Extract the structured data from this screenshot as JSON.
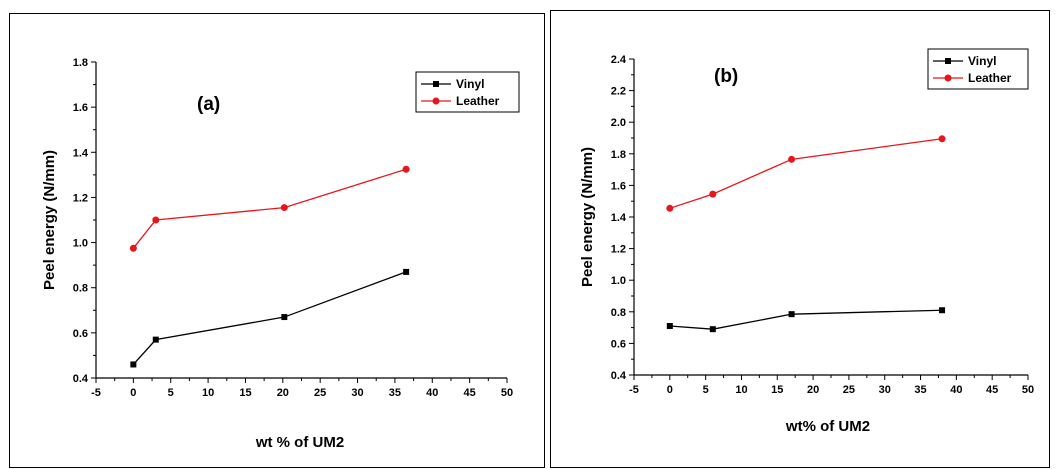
{
  "chart_data": [
    {
      "type": "line",
      "panel_label": "(a)",
      "xlabel": "wt %  of UM2",
      "ylabel": "Peel energy (N/mm)",
      "xlim": [
        -5,
        50
      ],
      "ylim": [
        0.4,
        1.8
      ],
      "xticks": [
        -5,
        0,
        5,
        10,
        15,
        20,
        25,
        30,
        35,
        40,
        45,
        50
      ],
      "yticks": [
        0.4,
        0.6,
        0.8,
        1.0,
        1.2,
        1.4,
        1.6,
        1.8
      ],
      "legend_position": "top-right",
      "series": [
        {
          "name": "Vinyl",
          "marker": "square",
          "color": "#000000",
          "x": [
            0,
            3,
            20.2,
            36.5
          ],
          "y": [
            0.46,
            0.57,
            0.67,
            0.87
          ]
        },
        {
          "name": "Leather",
          "marker": "circle",
          "color": "#e8161b",
          "x": [
            0,
            3,
            20.2,
            36.5
          ],
          "y": [
            0.975,
            1.1,
            1.155,
            1.325
          ]
        }
      ]
    },
    {
      "type": "line",
      "panel_label": "(b)",
      "xlabel": "wt% of UM2",
      "ylabel": "Peel energy (N/mm)",
      "xlim": [
        -5,
        50
      ],
      "ylim": [
        0.4,
        2.4
      ],
      "xticks": [
        -5,
        0,
        5,
        10,
        15,
        20,
        25,
        30,
        35,
        40,
        45,
        50
      ],
      "yticks": [
        0.4,
        0.6,
        0.8,
        1.0,
        1.2,
        1.4,
        1.6,
        1.8,
        2.0,
        2.2,
        2.4
      ],
      "legend_position": "top-right",
      "series": [
        {
          "name": "Vinyl",
          "marker": "square",
          "color": "#000000",
          "x": [
            0,
            6,
            17,
            38
          ],
          "y": [
            0.71,
            0.69,
            0.785,
            0.81
          ]
        },
        {
          "name": "Leather",
          "marker": "circle",
          "color": "#e8161b",
          "x": [
            0,
            6,
            17,
            38
          ],
          "y": [
            1.455,
            1.545,
            1.765,
            1.895
          ]
        }
      ]
    }
  ]
}
